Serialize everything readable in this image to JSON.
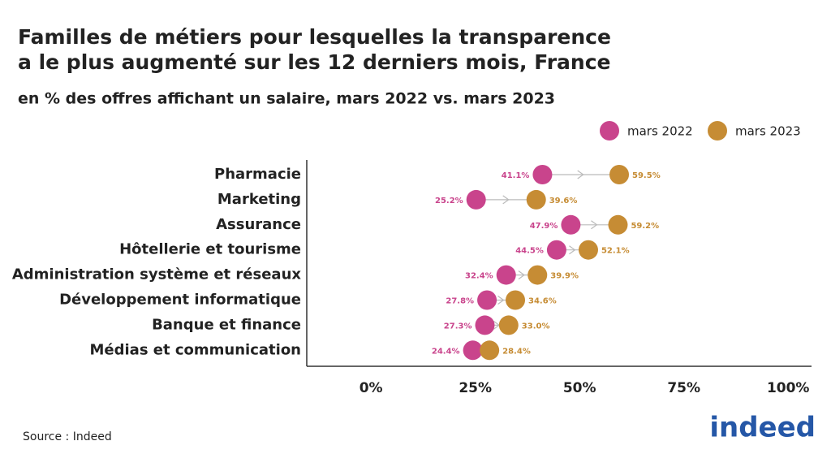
{
  "chart_data": {
    "type": "dumbbell",
    "title": [
      "Familles de métiers pour lesquelles la transparence",
      "a le plus augmenté sur les 12 derniers mois, France"
    ],
    "subtitle": "en % des offres affichant un salaire, mars 2022 vs. mars 2023",
    "categories": [
      "Pharmacie",
      "Marketing",
      "Assurance",
      "Hôtellerie et tourisme",
      "Administration système et réseaux",
      "Développement informatique",
      "Banque et finance",
      "Médias et communication"
    ],
    "series": [
      {
        "name": "mars 2022",
        "color": "#c9448c",
        "values": [
          41.1,
          25.2,
          47.9,
          44.5,
          32.4,
          27.8,
          27.3,
          24.4
        ],
        "value_labels": [
          "41.1%",
          "25.2%",
          "47.9%",
          "44.5%",
          "32.4%",
          "27.8%",
          "27.3%",
          "24.4%"
        ]
      },
      {
        "name": "mars 2023",
        "color": "#c68c34",
        "values": [
          59.5,
          39.6,
          59.2,
          52.1,
          39.9,
          34.6,
          33.0,
          28.4
        ],
        "value_labels": [
          "59.5%",
          "39.6%",
          "59.2%",
          "52.1%",
          "39.9%",
          "34.6%",
          "33.0%",
          "28.4%"
        ]
      }
    ],
    "xlim": [
      -15.4,
      105.6
    ],
    "xticks": [
      {
        "value": 0,
        "label": "0%"
      },
      {
        "value": 25,
        "label": "25%"
      },
      {
        "value": 50,
        "label": "50%"
      },
      {
        "value": 75,
        "label": "75%"
      },
      {
        "value": 100,
        "label": "100%"
      }
    ],
    "legend": "top-right",
    "source": "Source : Indeed",
    "logo": "indeed"
  }
}
